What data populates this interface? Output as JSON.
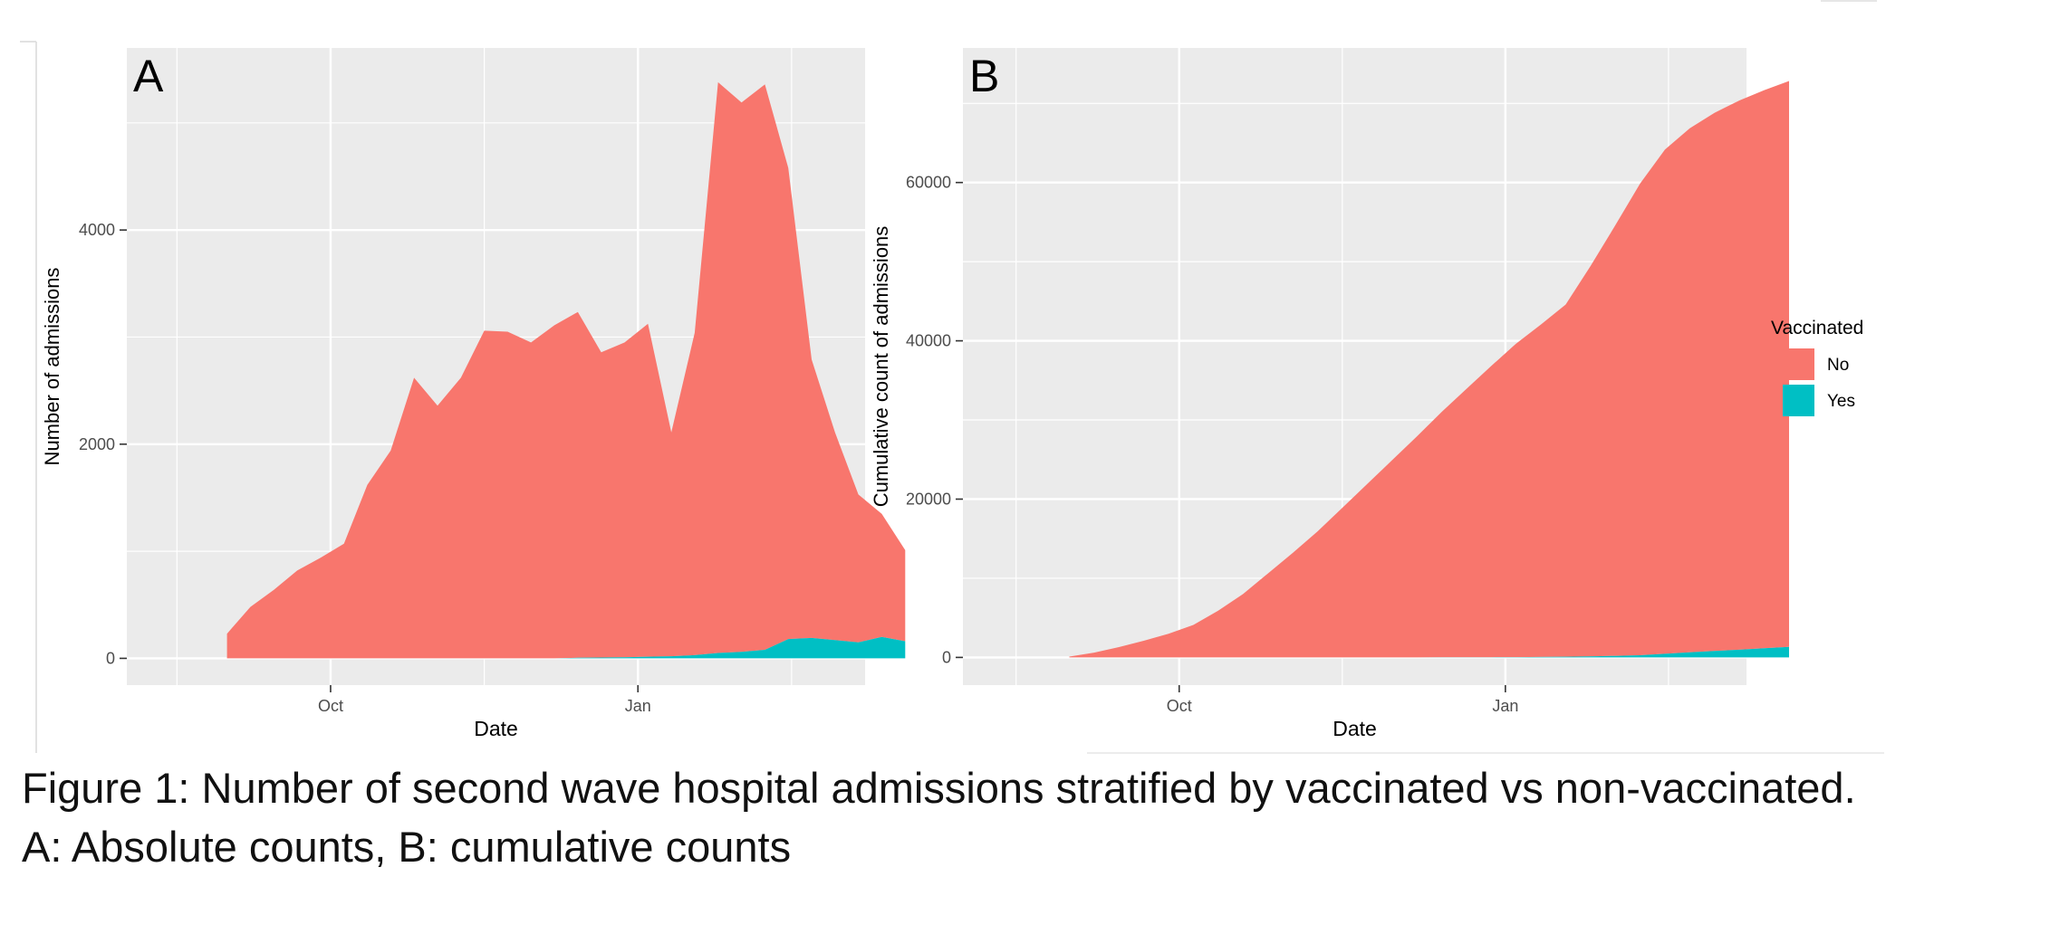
{
  "figure": {
    "caption_line1": "Figure 1:  Number of second wave hospital admissions stratified by vaccinated vs non-vaccinated.",
    "caption_line2": "A: Absolute counts, B: cumulative counts"
  },
  "colors": {
    "no": "#F8766D",
    "yes": "#00BFC4",
    "panel_bg": "#EBEBEB",
    "grid": "#FFFFFF",
    "text": "#4D4D4D"
  },
  "legend": {
    "title": "Vaccinated",
    "placement": "right",
    "items": [
      {
        "label": "No",
        "color": "#F8766D"
      },
      {
        "label": "Yes",
        "color": "#00BFC4"
      }
    ]
  },
  "chart_data": [
    {
      "type": "area",
      "stacked": true,
      "panel_label": "A",
      "xlabel": "Date",
      "ylabel": "Number of admissions",
      "x_ticks": [
        {
          "label": "Oct",
          "date": "2020-10-01"
        },
        {
          "label": "Jan",
          "date": "2021-01-01"
        }
      ],
      "xlim": [
        "2020-08-01",
        "2021-03-10"
      ],
      "y_ticks": [
        0,
        2000,
        4000
      ],
      "ylim": [
        -250,
        5700
      ],
      "grid": true,
      "x": [
        "2020-08-31",
        "2020-09-07",
        "2020-09-14",
        "2020-09-21",
        "2020-09-28",
        "2020-10-05",
        "2020-10-12",
        "2020-10-19",
        "2020-10-26",
        "2020-11-02",
        "2020-11-09",
        "2020-11-16",
        "2020-11-23",
        "2020-11-30",
        "2020-12-07",
        "2020-12-14",
        "2020-12-21",
        "2020-12-28",
        "2021-01-04",
        "2021-01-11",
        "2021-01-18",
        "2021-01-25",
        "2021-02-01",
        "2021-02-08",
        "2021-02-15",
        "2021-02-22",
        "2021-03-01"
      ],
      "series": [
        {
          "name": "No",
          "color": "#F8766D",
          "values": [
            230,
            480,
            640,
            820,
            940,
            1070,
            1620,
            1940,
            2620,
            2360,
            2620,
            3060,
            3050,
            2950,
            3110,
            3230,
            2850,
            2940,
            3110,
            2090,
            3010,
            5330,
            5130,
            5280,
            4400,
            2600,
            1940
          ]
        },
        {
          "name": "Yes",
          "color": "#00BFC4",
          "values": [
            0,
            0,
            0,
            0,
            0,
            0,
            0,
            0,
            0,
            0,
            0,
            0,
            0,
            0,
            0,
            5,
            8,
            10,
            15,
            20,
            30,
            50,
            60,
            80,
            180,
            190,
            170
          ]
        }
      ],
      "series_tail": {
        "x": [
          "2021-03-08",
          "2021-03-15",
          "2021-03-22"
        ],
        "no": [
          1380,
          1150,
          850
        ],
        "yes": [
          150,
          200,
          160
        ]
      }
    },
    {
      "type": "area",
      "stacked": true,
      "panel_label": "B",
      "xlabel": "Date",
      "ylabel": "Cumulative count of admissions",
      "x_ticks": [
        {
          "label": "Oct",
          "date": "2020-10-01"
        },
        {
          "label": "Jan",
          "date": "2021-01-01"
        }
      ],
      "xlim": [
        "2020-08-01",
        "2021-03-10"
      ],
      "y_ticks": [
        0,
        20000,
        40000,
        60000
      ],
      "ylim": [
        -3500,
        77000
      ],
      "grid": true,
      "x": [
        "2020-08-31",
        "2020-09-07",
        "2020-09-14",
        "2020-09-21",
        "2020-09-28",
        "2020-10-05",
        "2020-10-12",
        "2020-10-19",
        "2020-10-26",
        "2020-11-02",
        "2020-11-09",
        "2020-11-16",
        "2020-11-23",
        "2020-11-30",
        "2020-12-07",
        "2020-12-14",
        "2020-12-21",
        "2020-12-28",
        "2021-01-04",
        "2021-01-11",
        "2021-01-18",
        "2021-01-25",
        "2021-02-01",
        "2021-02-08",
        "2021-02-15",
        "2021-02-22",
        "2021-03-01",
        "2021-03-08",
        "2021-03-15",
        "2021-03-22"
      ],
      "series": [
        {
          "name": "No",
          "color": "#F8766D",
          "values": [
            100,
            600,
            1300,
            2100,
            3000,
            4100,
            5900,
            8000,
            10600,
            13200,
            15900,
            18900,
            21900,
            24900,
            27900,
            31000,
            33900,
            36800,
            39600,
            42000,
            44500,
            49300,
            54400,
            59600,
            63700,
            66200,
            68000,
            69400,
            70500,
            71500
          ]
        },
        {
          "name": "Yes",
          "color": "#00BFC4",
          "values": [
            0,
            0,
            0,
            0,
            0,
            0,
            0,
            0,
            0,
            0,
            0,
            0,
            0,
            0,
            0,
            5,
            13,
            23,
            38,
            58,
            88,
            138,
            198,
            278,
            458,
            648,
            818,
            968,
            1168,
            1328
          ]
        }
      ]
    }
  ]
}
